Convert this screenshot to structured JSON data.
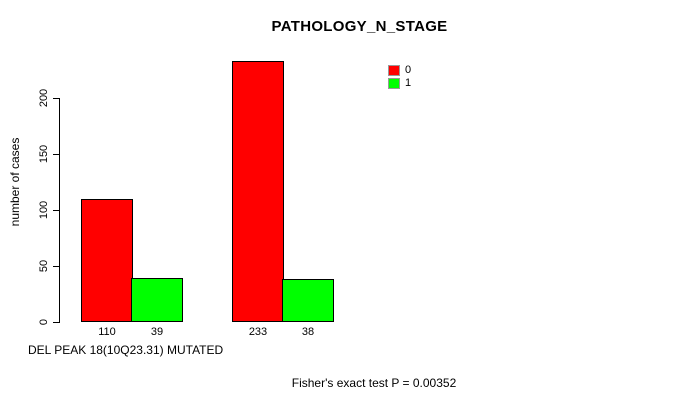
{
  "chart_data": {
    "type": "bar",
    "title": "PATHOLOGY_N_STAGE",
    "ylabel": "number of cases",
    "xlabel": "DEL PEAK 18(10Q23.31) MUTATED",
    "annotation": "Fisher's exact test P = 0.00352",
    "y_ticks": [
      0,
      50,
      100,
      150,
      200
    ],
    "ylim": [
      0,
      235
    ],
    "grid": false,
    "legend_position": "top-right",
    "legend": [
      {
        "label": "0",
        "color": "#ff0000"
      },
      {
        "label": "1",
        "color": "#00ff00"
      }
    ],
    "series": [
      {
        "name": "0",
        "color": "#ff0000",
        "values": [
          110,
          233
        ]
      },
      {
        "name": "1",
        "color": "#00ff00",
        "values": [
          39,
          38
        ]
      }
    ],
    "bar_labels": [
      "110",
      "39",
      "233",
      "38"
    ],
    "bar_border_color": "#000000"
  }
}
